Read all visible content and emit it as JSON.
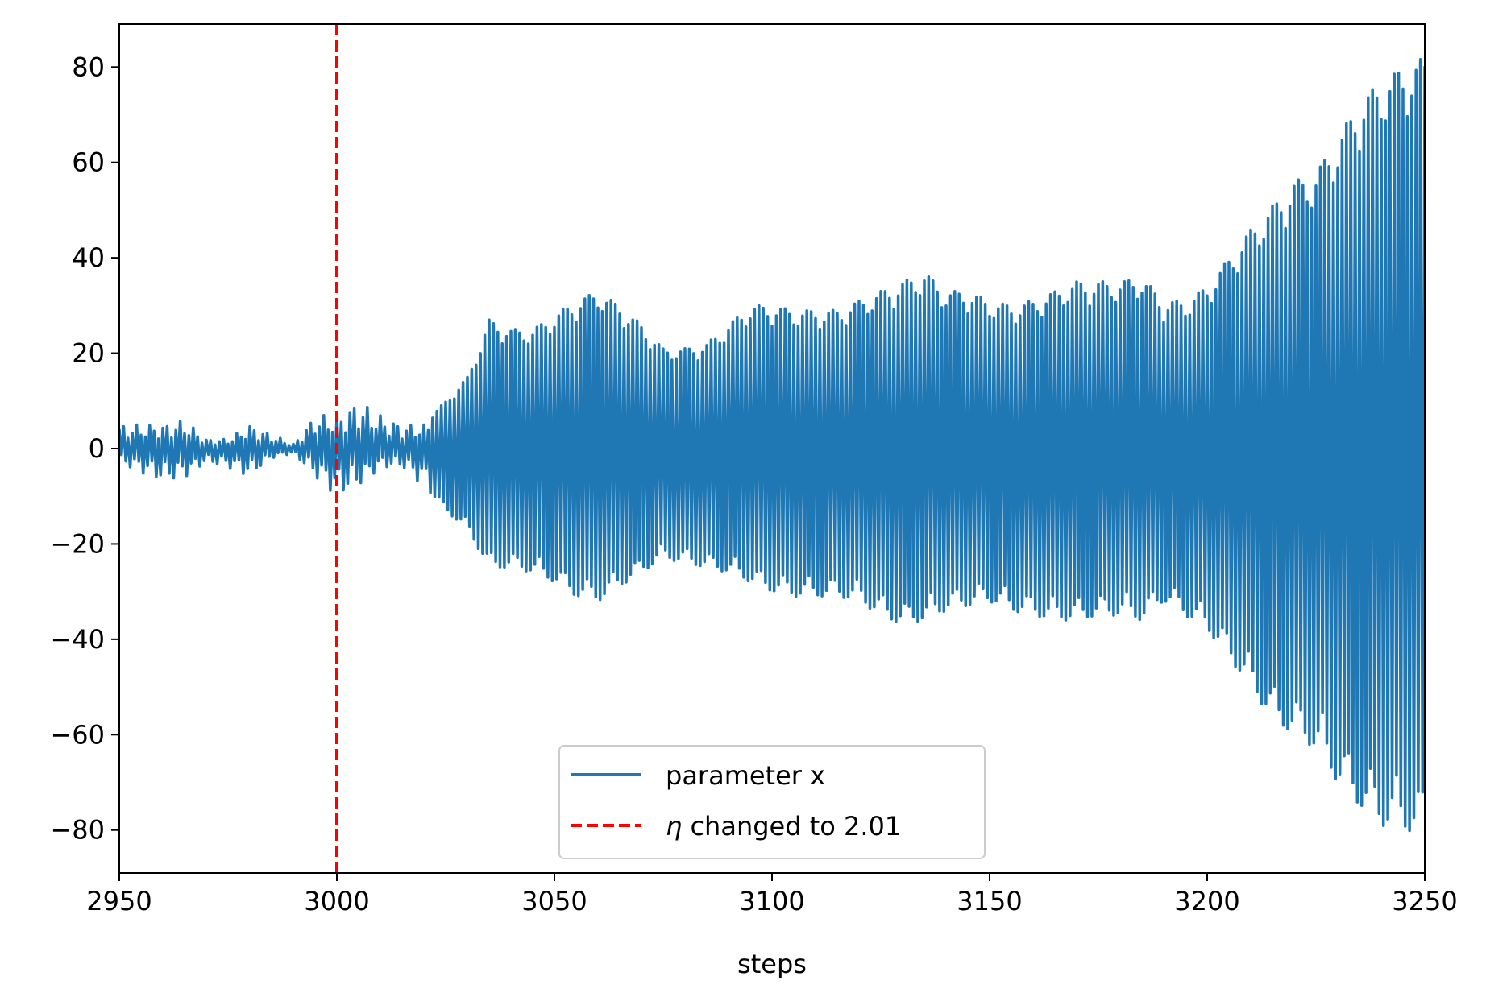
{
  "chart_data": {
    "type": "line",
    "title": "",
    "xlabel": "steps",
    "ylabel": "",
    "xlim": [
      2950,
      3250
    ],
    "ylim": [
      -89,
      89
    ],
    "x_ticks": [
      2950,
      3000,
      3050,
      3100,
      3150,
      3200,
      3250
    ],
    "x_tick_labels": [
      "2950",
      "3000",
      "3050",
      "3100",
      "3150",
      "3200",
      "3250"
    ],
    "y_ticks": [
      80,
      60,
      40,
      20,
      0,
      -20,
      -40,
      -60,
      -80
    ],
    "y_tick_labels": [
      "80",
      "60",
      "40",
      "20",
      "0",
      "−20",
      "−40",
      "−60",
      "−80"
    ],
    "grid": false,
    "legend_position": "lower center",
    "series": [
      {
        "name": "parameter x",
        "color": "#1f77b4",
        "style": "solid",
        "amplitude_envelope": {
          "x": [
            2950,
            2960,
            2965,
            2970,
            2975,
            2980,
            2985,
            2990,
            2995,
            3000,
            3005,
            3010,
            3015,
            3020,
            3025,
            3030,
            3035,
            3040,
            3045,
            3050,
            3055,
            3060,
            3065,
            3070,
            3075,
            3080,
            3085,
            3090,
            3095,
            3100,
            3105,
            3110,
            3115,
            3120,
            3125,
            3130,
            3135,
            3140,
            3145,
            3150,
            3155,
            3160,
            3165,
            3170,
            3175,
            3180,
            3185,
            3190,
            3195,
            3200,
            3205,
            3210,
            3215,
            3220,
            3225,
            3230,
            3235,
            3240,
            3245,
            3250
          ],
          "upper": [
            5,
            5,
            6,
            2,
            2,
            5,
            3,
            1,
            7,
            7,
            10,
            7,
            5,
            5,
            10,
            15,
            27,
            25,
            25,
            28,
            31,
            33,
            30,
            26,
            21,
            21,
            22,
            26,
            30,
            30,
            29,
            29,
            29,
            31,
            33,
            35,
            37,
            33,
            33,
            31,
            30,
            31,
            33,
            35,
            35,
            35,
            36,
            31,
            31,
            34,
            40,
            46,
            51,
            56,
            58,
            65,
            73,
            77,
            80,
            82
          ],
          "lower": [
            -3,
            -7,
            -6,
            -3,
            -4,
            -6,
            -2,
            -1,
            -6,
            -10,
            -8,
            -4,
            -4,
            -8,
            -13,
            -17,
            -25,
            -25,
            -26,
            -28,
            -31,
            -32,
            -29,
            -26,
            -23,
            -24,
            -25,
            -26,
            -28,
            -30,
            -31,
            -31,
            -31,
            -32,
            -35,
            -37,
            -36,
            -34,
            -33,
            -32,
            -34,
            -35,
            -36,
            -36,
            -35,
            -35,
            -36,
            -32,
            -35,
            -38,
            -44,
            -50,
            -57,
            -60,
            -63,
            -70,
            -75,
            -79,
            -80,
            -81
          ]
        }
      },
      {
        "name": "η changed to 2.01",
        "color": "#ff0000",
        "style": "dashed",
        "x": 3000
      }
    ],
    "legend": [
      {
        "label": "parameter x",
        "color": "#1f77b4",
        "style": "solid"
      },
      {
        "label_prefix": "η",
        "label_rest": " changed to 2.01",
        "color": "#ff0000",
        "style": "dashed"
      }
    ]
  }
}
